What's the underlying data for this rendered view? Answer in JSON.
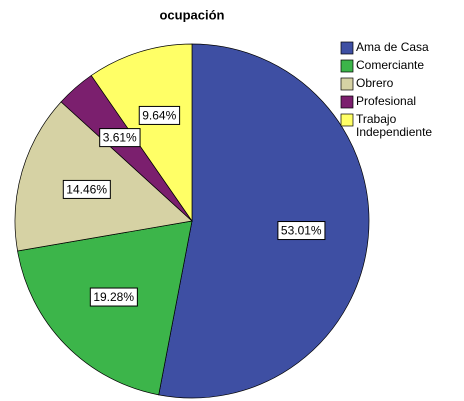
{
  "chart_data": {
    "type": "pie",
    "title": "ocupación",
    "series": [
      {
        "name": "Ama de Casa",
        "color": "#3e4fa3",
        "values": [
          53.01
        ],
        "value_labels": [
          "53.01%"
        ]
      },
      {
        "name": "Comerciante",
        "color": "#3cb54a",
        "values": [
          19.28
        ],
        "value_labels": [
          "19.28%"
        ]
      },
      {
        "name": "Obrero",
        "color": "#d6d2a4",
        "values": [
          14.46
        ],
        "value_labels": [
          "14.46%"
        ]
      },
      {
        "name": "Profesional",
        "color": "#7b1f6e",
        "values": [
          3.61
        ],
        "value_labels": [
          "3.61%"
        ]
      },
      {
        "name": "Trabajo Independiente",
        "color": "#ffff66",
        "values": [
          9.64
        ],
        "value_labels": [
          "9.64%"
        ]
      }
    ],
    "legend": "upper right"
  }
}
